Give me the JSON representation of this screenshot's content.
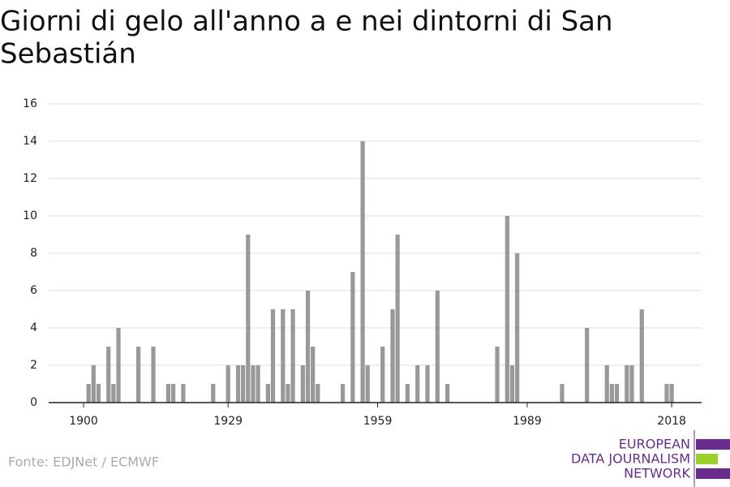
{
  "chart_data": {
    "type": "bar",
    "title_lines": [
      "Giorni di gelo all'anno a e nei dintorni di San",
      "Sebastián"
    ],
    "x": [
      1901,
      1902,
      1903,
      1905,
      1906,
      1907,
      1911,
      1914,
      1917,
      1918,
      1920,
      1926,
      1929,
      1931,
      1932,
      1933,
      1934,
      1935,
      1937,
      1938,
      1940,
      1941,
      1942,
      1944,
      1945,
      1946,
      1947,
      1952,
      1954,
      1956,
      1957,
      1960,
      1962,
      1963,
      1965,
      1967,
      1969,
      1971,
      1973,
      1983,
      1985,
      1986,
      1987,
      1996,
      2001,
      2005,
      2006,
      2007,
      2009,
      2010,
      2012,
      2017,
      2018
    ],
    "values": [
      1,
      2,
      1,
      3,
      1,
      4,
      3,
      3,
      1,
      1,
      1,
      1,
      2,
      2,
      2,
      9,
      2,
      2,
      1,
      5,
      5,
      1,
      5,
      2,
      6,
      3,
      1,
      1,
      7,
      14,
      2,
      3,
      5,
      9,
      1,
      2,
      2,
      6,
      1,
      3,
      10,
      2,
      8,
      1,
      4,
      2,
      1,
      1,
      2,
      2,
      5,
      1,
      1
    ],
    "color": "#999999",
    "xlim": [
      1893,
      2024
    ],
    "xticks": [
      1900,
      1929,
      1959,
      1989,
      2018
    ],
    "ylim": [
      0,
      16
    ],
    "yticks": [
      0,
      2,
      4,
      6,
      8,
      10,
      12,
      14,
      16
    ],
    "grid": true,
    "source": "Fonte: EDJNet / ECMWF",
    "logo": [
      "EUROPEAN",
      "DATA JOURNALISM",
      "NETWORK"
    ]
  }
}
